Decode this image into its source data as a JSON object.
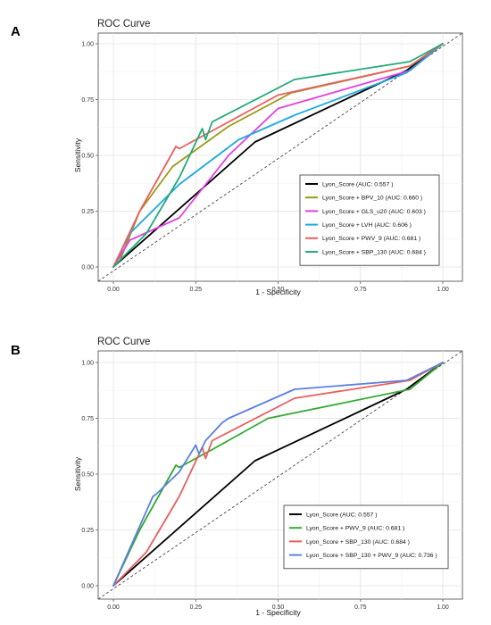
{
  "panels": [
    {
      "letter": "A"
    },
    {
      "letter": "B"
    }
  ],
  "chart_data": [
    {
      "type": "line",
      "title": "ROC Curve",
      "xlabel": "1 - Specificity",
      "ylabel": "Sensitivity",
      "xlim": [
        0,
        1
      ],
      "ylim": [
        0,
        1
      ],
      "x_ticks": [
        "0.00",
        "0.25",
        "0.50",
        "0.75",
        "1.00"
      ],
      "y_ticks": [
        "0.00",
        "0.25",
        "0.50",
        "0.75",
        "1.00"
      ],
      "grid": true,
      "diagonal_reference": true,
      "legend_position": "bottom-right",
      "series": [
        {
          "name": "Lyon_Score (AUC: 0.557 )",
          "color": "#000000",
          "points": [
            [
              0,
              0
            ],
            [
              0.43,
              0.56
            ],
            [
              0.89,
              0.88
            ],
            [
              1,
              1
            ]
          ]
        },
        {
          "name": "Lyon_Score + BPV_10 (AUC: 0.660 )",
          "color": "#9a9a1a",
          "points": [
            [
              0,
              0
            ],
            [
              0.02,
              0.03
            ],
            [
              0.08,
              0.25
            ],
            [
              0.18,
              0.45
            ],
            [
              0.35,
              0.63
            ],
            [
              0.54,
              0.78
            ],
            [
              0.9,
              0.9
            ],
            [
              1,
              1
            ]
          ]
        },
        {
          "name": "Lyon_Score + GLS_u20 (AUC: 0.603 )",
          "color": "#e040e0",
          "points": [
            [
              0,
              0
            ],
            [
              0.05,
              0.12
            ],
            [
              0.2,
              0.22
            ],
            [
              0.35,
              0.5
            ],
            [
              0.5,
              0.71
            ],
            [
              0.9,
              0.88
            ],
            [
              1,
              1
            ]
          ]
        },
        {
          "name": "Lyon_Score + LVH (AUC: 0.606 )",
          "color": "#1ea8e0",
          "points": [
            [
              0,
              0
            ],
            [
              0.05,
              0.15
            ],
            [
              0.2,
              0.37
            ],
            [
              0.38,
              0.57
            ],
            [
              0.55,
              0.68
            ],
            [
              0.89,
              0.87
            ],
            [
              1,
              1
            ]
          ]
        },
        {
          "name": "Lyon_Score + PWV_9 (AUC: 0.681 )",
          "color": "#e86060",
          "points": [
            [
              0,
              0
            ],
            [
              0.08,
              0.25
            ],
            [
              0.19,
              0.54
            ],
            [
              0.2,
              0.53
            ],
            [
              0.3,
              0.61
            ],
            [
              0.5,
              0.77
            ],
            [
              0.9,
              0.9
            ],
            [
              1,
              1
            ]
          ]
        },
        {
          "name": "Lyon_Score + SBP_130 (AUC: 0.684 )",
          "color": "#22aa77",
          "points": [
            [
              0,
              0
            ],
            [
              0.1,
              0.15
            ],
            [
              0.2,
              0.4
            ],
            [
              0.27,
              0.62
            ],
            [
              0.28,
              0.57
            ],
            [
              0.3,
              0.65
            ],
            [
              0.55,
              0.84
            ],
            [
              0.9,
              0.92
            ],
            [
              1,
              1
            ]
          ]
        }
      ]
    },
    {
      "type": "line",
      "title": "ROC Curve",
      "xlabel": "1 - Specificity",
      "ylabel": "Sensitivity",
      "xlim": [
        0,
        1
      ],
      "ylim": [
        0,
        1
      ],
      "x_ticks": [
        "0.00",
        "0.25",
        "0.50",
        "0.75",
        "1.00"
      ],
      "y_ticks": [
        "0.00",
        "0.25",
        "0.50",
        "0.75",
        "1.00"
      ],
      "grid": true,
      "diagonal_reference": true,
      "legend_position": "bottom-right",
      "series": [
        {
          "name": "Lyon_Score (AUC: 0.557 )",
          "color": "#000000",
          "points": [
            [
              0,
              0
            ],
            [
              0.43,
              0.56
            ],
            [
              0.89,
              0.88
            ],
            [
              1,
              1
            ]
          ]
        },
        {
          "name": "Lyon_Score + PWV_9 (AUC: 0.681 )",
          "color": "#33aa33",
          "points": [
            [
              0,
              0
            ],
            [
              0.08,
              0.25
            ],
            [
              0.19,
              0.54
            ],
            [
              0.2,
              0.53
            ],
            [
              0.3,
              0.61
            ],
            [
              0.47,
              0.75
            ],
            [
              0.9,
              0.88
            ],
            [
              1,
              1
            ]
          ]
        },
        {
          "name": "Lyon_Score + SBP_130 (AUC: 0.684 )",
          "color": "#e86060",
          "points": [
            [
              0,
              0
            ],
            [
              0.1,
              0.15
            ],
            [
              0.2,
              0.4
            ],
            [
              0.27,
              0.62
            ],
            [
              0.28,
              0.57
            ],
            [
              0.3,
              0.65
            ],
            [
              0.55,
              0.84
            ],
            [
              0.9,
              0.92
            ],
            [
              1,
              1
            ]
          ]
        },
        {
          "name": "Lyon_Score + SBP_130 + PWV_9 (AUC: 0.736 )",
          "color": "#5b80e0",
          "points": [
            [
              0,
              0
            ],
            [
              0.06,
              0.2
            ],
            [
              0.12,
              0.4
            ],
            [
              0.13,
              0.41
            ],
            [
              0.2,
              0.51
            ],
            [
              0.25,
              0.63
            ],
            [
              0.26,
              0.59
            ],
            [
              0.28,
              0.65
            ],
            [
              0.33,
              0.73
            ],
            [
              0.35,
              0.75
            ],
            [
              0.55,
              0.88
            ],
            [
              0.89,
              0.92
            ],
            [
              1,
              1
            ]
          ]
        }
      ]
    }
  ]
}
